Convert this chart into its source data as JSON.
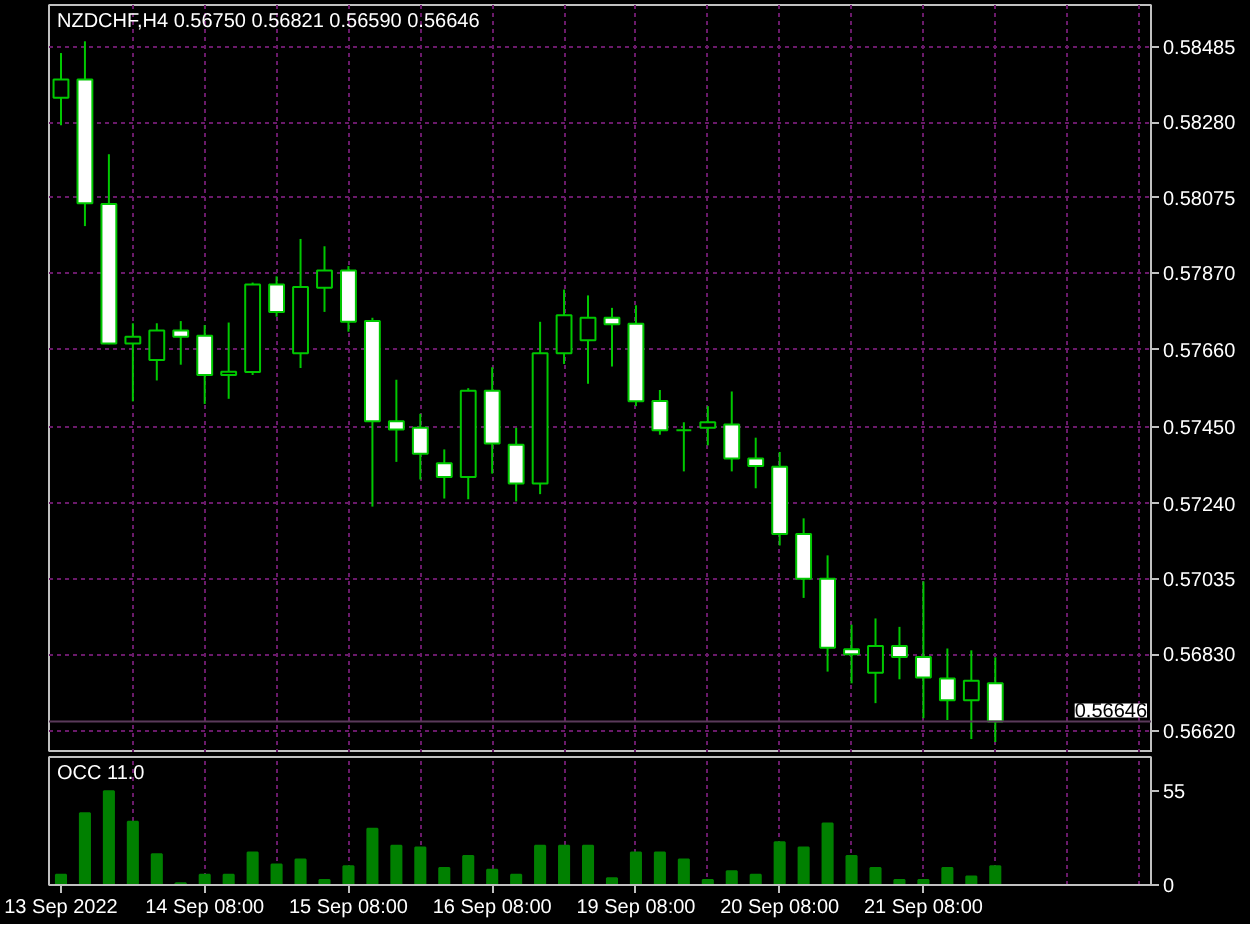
{
  "chart_data": [
    {
      "type": "candlestick",
      "title": "NZDCHF,H4 0.56750 0.56821 0.56590 0.56646",
      "categories": [
        null,
        null,
        null,
        null,
        null,
        null,
        null,
        null,
        null,
        null,
        null,
        null,
        null,
        null,
        null,
        null,
        null,
        null,
        null,
        null,
        null,
        null,
        null,
        null,
        null,
        null,
        null,
        null,
        null,
        null,
        null,
        null,
        null,
        null,
        null,
        null,
        null,
        null,
        null,
        null,
        null,
        null,
        null,
        null,
        null,
        null
      ],
      "ohlc": [
        [
          0.58347,
          0.58469,
          0.58272,
          0.58397
        ],
        [
          0.58397,
          0.58501,
          0.57997,
          0.58059
        ],
        [
          0.58057,
          0.58193,
          0.57675,
          0.57677
        ],
        [
          0.57677,
          0.57732,
          0.57519,
          0.57695
        ],
        [
          0.57632,
          0.57732,
          0.57576,
          0.57712
        ],
        [
          0.57712,
          0.57738,
          0.57619,
          0.57695
        ],
        [
          0.57698,
          0.57727,
          0.57512,
          0.57591
        ],
        [
          0.57591,
          0.57734,
          0.57526,
          0.576
        ],
        [
          0.57599,
          0.57843,
          0.57591,
          0.57838
        ],
        [
          0.57838,
          0.5786,
          0.5775,
          0.57763
        ],
        [
          0.5765,
          0.57962,
          0.5761,
          0.57831
        ],
        [
          0.57829,
          0.57942,
          0.57763,
          0.57876
        ],
        [
          0.57876,
          0.57888,
          0.57709,
          0.57736
        ],
        [
          0.57738,
          0.57747,
          0.57232,
          0.57465
        ],
        [
          0.57465,
          0.57578,
          0.57354,
          0.57442
        ],
        [
          0.57447,
          0.57485,
          0.57306,
          0.57376
        ],
        [
          0.5735,
          0.57388,
          0.57254,
          0.57313
        ],
        [
          0.57313,
          0.57555,
          0.57252,
          0.57548
        ],
        [
          0.57548,
          0.57612,
          0.57322,
          0.57404
        ],
        [
          0.57401,
          0.57447,
          0.57246,
          0.57295
        ],
        [
          0.57295,
          0.57736,
          0.57266,
          0.5765
        ],
        [
          0.5765,
          0.57824,
          0.57621,
          0.57754
        ],
        [
          0.57686,
          0.57808,
          0.57567,
          0.57747
        ],
        [
          0.57747,
          0.57774,
          0.57614,
          0.57729
        ],
        [
          0.57731,
          0.57781,
          0.57506,
          0.57519
        ],
        [
          0.5752,
          0.5755,
          0.57428,
          0.5744
        ],
        [
          0.5744,
          0.57462,
          0.57328,
          0.5744
        ],
        [
          0.57447,
          0.57506,
          0.57399,
          0.57462
        ],
        [
          0.57456,
          0.57546,
          0.57328,
          0.57363
        ],
        [
          0.57363,
          0.5742,
          0.57282,
          0.57343
        ],
        [
          0.57341,
          0.57381,
          0.57126,
          0.57157
        ],
        [
          0.57157,
          0.572,
          0.56983,
          0.57035
        ],
        [
          0.57035,
          0.57099,
          0.56782,
          0.56847
        ],
        [
          0.56843,
          0.5691,
          0.5675,
          0.56829
        ],
        [
          0.56779,
          0.56927,
          0.56696,
          0.56852
        ],
        [
          0.56852,
          0.56904,
          0.56761,
          0.56822
        ],
        [
          0.56822,
          0.57028,
          0.56655,
          0.56766
        ],
        [
          0.56763,
          0.56845,
          0.5665,
          0.56704
        ],
        [
          0.56704,
          0.5684,
          0.56598,
          0.56757
        ],
        [
          0.5675,
          0.56821,
          0.5659,
          0.56646
        ],
        null,
        null,
        null,
        null,
        null,
        null
      ],
      "color": "#00c800",
      "colors": [
        "#000000",
        "#ffffff",
        "#ffffff",
        "#000000",
        "#000000",
        "#ffffff",
        "#ffffff",
        "#000000",
        "#000000",
        "#ffffff",
        "#000000",
        "#000000",
        "#ffffff",
        "#ffffff",
        "#ffffff",
        "#ffffff",
        "#ffffff",
        "#000000",
        "#ffffff",
        "#ffffff",
        "#000000",
        "#000000",
        "#000000",
        "#ffffff",
        "#ffffff",
        "#ffffff",
        "#00c800",
        "#000000",
        "#ffffff",
        "#ffffff",
        "#ffffff",
        "#ffffff",
        "#ffffff",
        "#ffffff",
        "#000000",
        "#ffffff",
        "#ffffff",
        "#ffffff",
        "#000000",
        "#ffffff",
        null,
        null,
        null,
        null,
        null,
        null
      ],
      "ylim": [
        0.5656,
        0.586
      ],
      "yticks": [
        {
          "value": 0.58485,
          "label": "0.58485"
        },
        {
          "value": 0.5828,
          "label": "0.58280"
        },
        {
          "value": 0.58075,
          "label": "0.58075"
        },
        {
          "value": 0.5787,
          "label": "0.57870"
        },
        {
          "value": 0.5766,
          "label": "0.57660"
        },
        {
          "value": 0.5745,
          "label": "0.57450"
        },
        {
          "value": 0.5724,
          "label": "0.57240"
        },
        {
          "value": 0.57035,
          "label": "0.57035"
        },
        {
          "value": 0.5683,
          "label": "0.56830"
        },
        {
          "value": 0.5662,
          "label": "0.56620"
        }
      ],
      "grid": true,
      "ref_lines": [
        {
          "axis": "y",
          "value": 0.56646,
          "label": "0.56646",
          "color": "#5a3a5a"
        }
      ]
    },
    {
      "type": "bar",
      "title": "OCC 11.0",
      "categories": [
        "13 Sep 2022",
        null,
        null,
        null,
        null,
        null,
        "14 Sep 08:00",
        null,
        null,
        null,
        null,
        null,
        "15 Sep 08:00",
        null,
        null,
        null,
        null,
        null,
        "16 Sep 08:00",
        null,
        null,
        null,
        null,
        null,
        "19 Sep 08:00",
        null,
        null,
        null,
        null,
        null,
        "20 Sep 08:00",
        null,
        null,
        null,
        null,
        null,
        "21 Sep 08:00",
        null,
        null,
        null,
        null,
        null,
        null,
        null,
        null,
        null
      ],
      "values": [
        6,
        42,
        55,
        37,
        18,
        1,
        6,
        6,
        19,
        12,
        15,
        3,
        11,
        33,
        23,
        22,
        10,
        17,
        9,
        6,
        23,
        23,
        23,
        4,
        19,
        19,
        15,
        3,
        8,
        6,
        25,
        22,
        36,
        17,
        10,
        3,
        3,
        10,
        5,
        11,
        null,
        null,
        null,
        null,
        null,
        null
      ],
      "color": "#008000",
      "ylim": [
        0,
        75
      ],
      "yticks": [
        0,
        55
      ],
      "grid": "x"
    }
  ]
}
